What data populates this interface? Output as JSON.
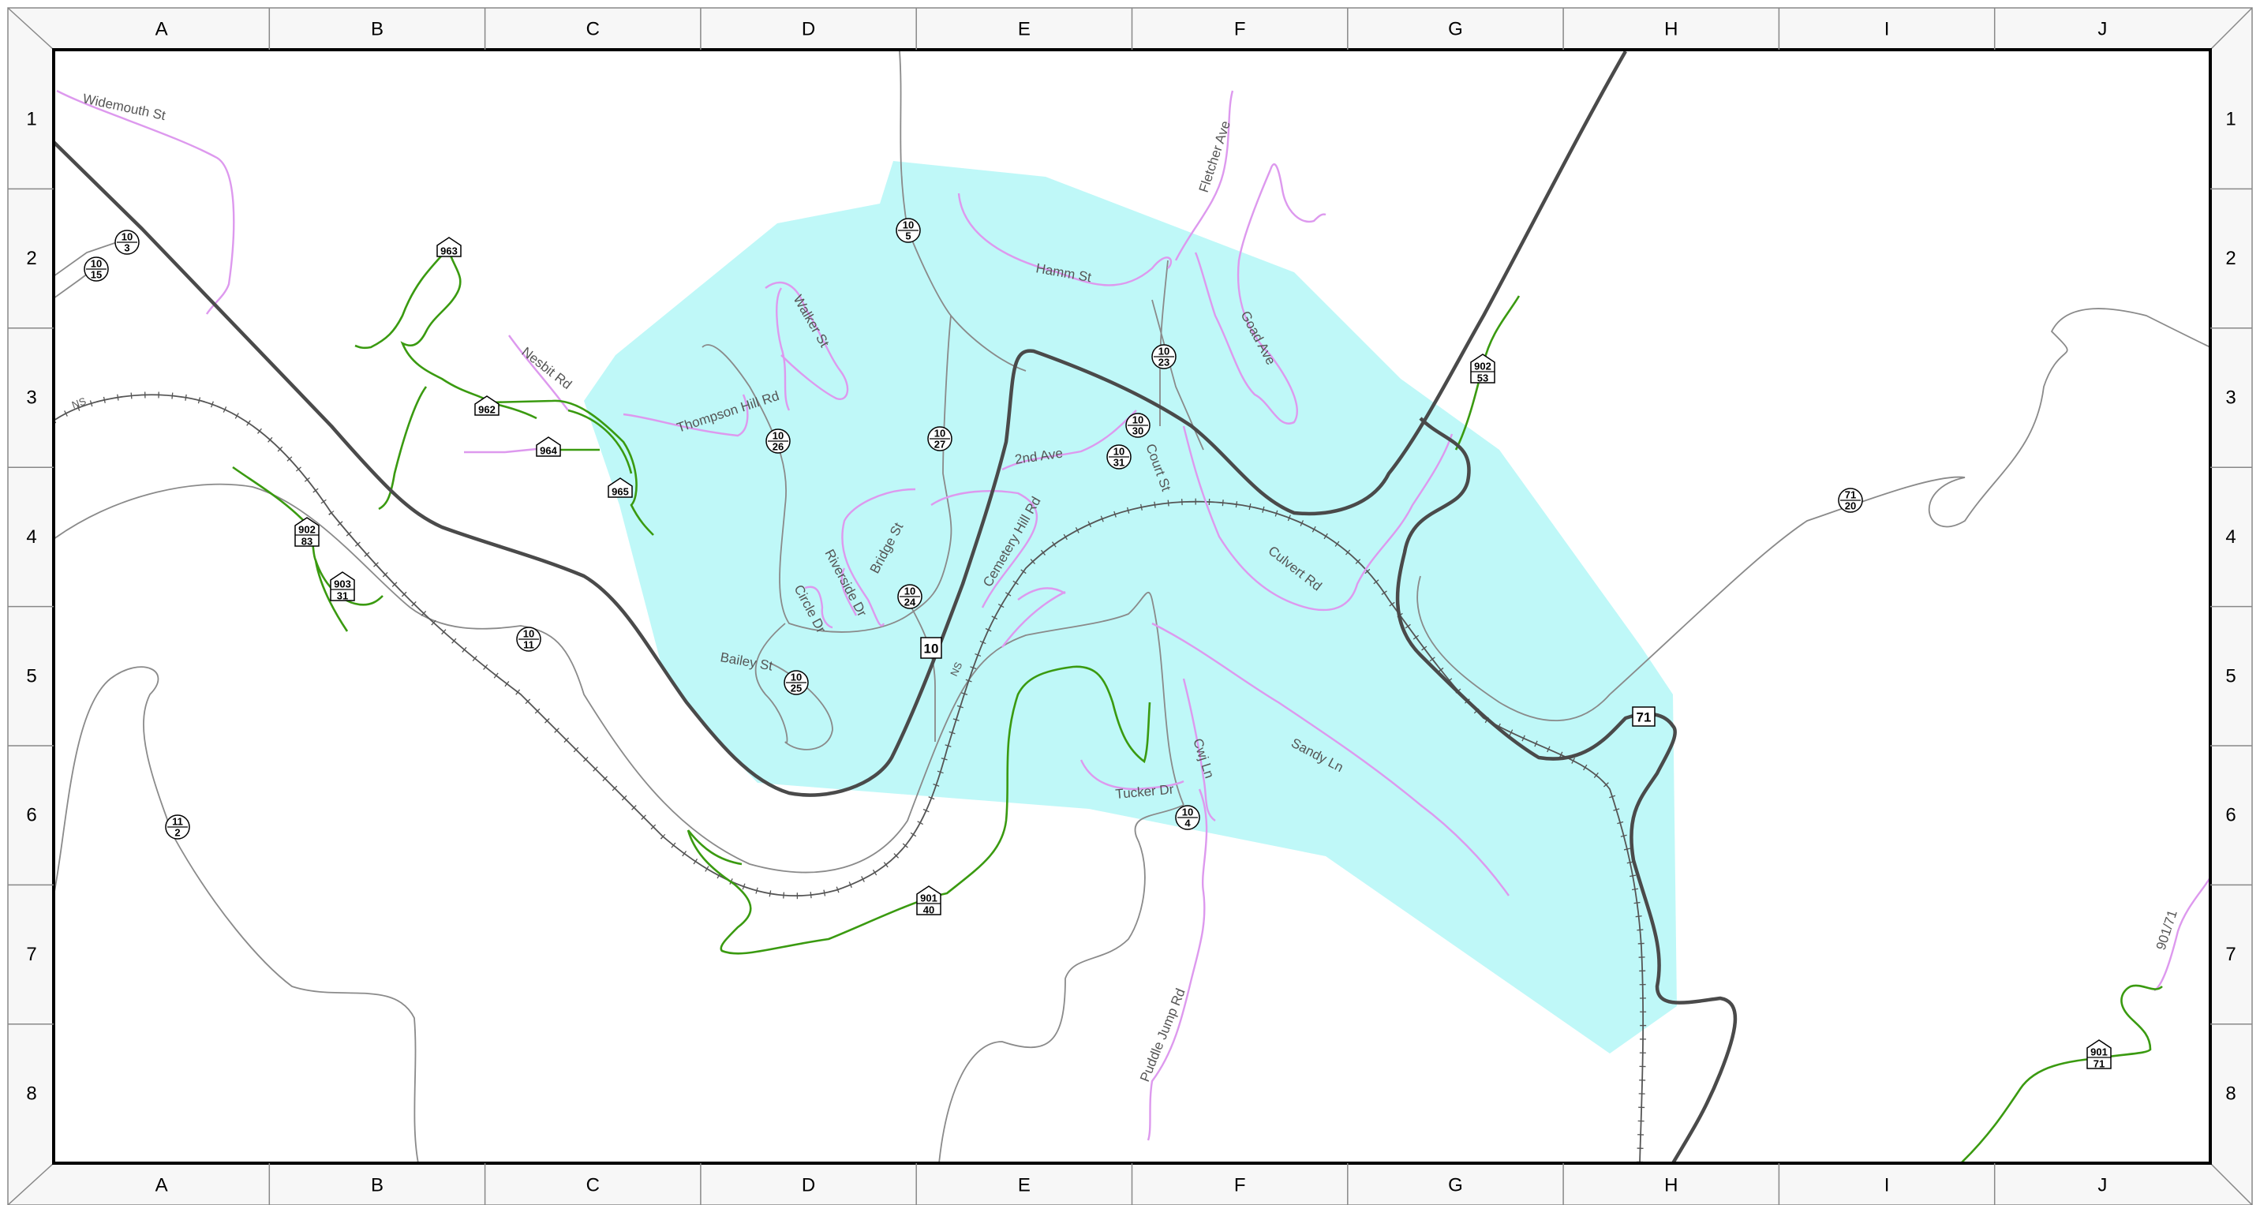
{
  "grid": {
    "columns": [
      "A",
      "B",
      "C",
      "D",
      "E",
      "F",
      "G",
      "H",
      "I",
      "J"
    ],
    "rows": [
      "1",
      "2",
      "3",
      "4",
      "5",
      "6",
      "7",
      "8"
    ]
  },
  "colors": {
    "municipal_area": "#bff8f8",
    "major_road": "#4a4a4a",
    "local_road": "#8a8a8a",
    "town_street": "#dd99ee",
    "green_route": "#3a9a10",
    "railroad": "#555555",
    "frame": "#000000"
  },
  "streets": {
    "widemouth": "Widemouth St",
    "nesbit": "Nesbit Rd",
    "walker": "Walker St",
    "thompson_hill": "Thompson Hill Rd",
    "hamm": "Hamm St",
    "fletcher": "Fletcher Ave",
    "goad": "Goad Ave",
    "second_ave": "2nd Ave",
    "court": "Court St",
    "cemetery_hill": "Cemetery Hill Rd",
    "bridge": "Bridge St",
    "riverside": "Riverside Dr",
    "circle": "Circle Dr",
    "bailey": "Bailey St",
    "culvert": "Culvert Rd",
    "sandy": "Sandy Ln",
    "cwj": "Cwj Ln",
    "tucker": "Tucker Dr",
    "puddle_jump": "Puddle Jump Rd",
    "route_901_71": "901/71"
  },
  "railroad_labels": {
    "west": "NS",
    "center": "NS"
  },
  "circle_shields": [
    {
      "id": "10-3",
      "top": "10",
      "bottom": "3"
    },
    {
      "id": "10-15",
      "top": "10",
      "bottom": "15"
    },
    {
      "id": "10-5",
      "top": "10",
      "bottom": "5"
    },
    {
      "id": "10-23",
      "top": "10",
      "bottom": "23"
    },
    {
      "id": "10-26",
      "top": "10",
      "bottom": "26"
    },
    {
      "id": "10-27",
      "top": "10",
      "bottom": "27"
    },
    {
      "id": "10-30",
      "top": "10",
      "bottom": "30"
    },
    {
      "id": "10-31",
      "top": "10",
      "bottom": "31"
    },
    {
      "id": "10-24",
      "top": "10",
      "bottom": "24"
    },
    {
      "id": "10-11",
      "top": "10",
      "bottom": "11"
    },
    {
      "id": "10-25",
      "top": "10",
      "bottom": "25"
    },
    {
      "id": "10-4",
      "top": "10",
      "bottom": "4"
    },
    {
      "id": "11-2",
      "top": "11",
      "bottom": "2"
    },
    {
      "id": "71-20",
      "top": "71",
      "bottom": "20"
    }
  ],
  "house_shields": [
    {
      "id": "963",
      "top": "963",
      "bottom": ""
    },
    {
      "id": "962",
      "top": "962",
      "bottom": ""
    },
    {
      "id": "964",
      "top": "964",
      "bottom": ""
    },
    {
      "id": "965",
      "top": "965",
      "bottom": ""
    },
    {
      "id": "902-83",
      "top": "902",
      "bottom": "83"
    },
    {
      "id": "903-31",
      "top": "903",
      "bottom": "31"
    },
    {
      "id": "902-53",
      "top": "902",
      "bottom": "53"
    },
    {
      "id": "901-40",
      "top": "901",
      "bottom": "40"
    },
    {
      "id": "901-71",
      "top": "901",
      "bottom": "71"
    }
  ],
  "route_markers": [
    {
      "id": "route-10",
      "label": "10"
    },
    {
      "id": "route-71",
      "label": "71"
    }
  ]
}
